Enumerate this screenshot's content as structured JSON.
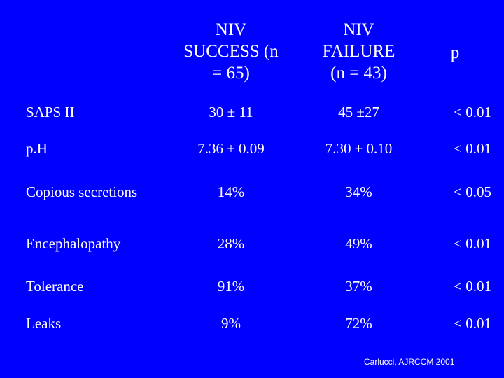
{
  "header": {
    "col1": "NIV\nSUCCESS  (n\n= 65)",
    "col2": "NIV\nFAILURE\n(n = 43)",
    "col3": "p"
  },
  "rows": [
    {
      "label": "SAPS II",
      "success": "30 ± 11",
      "failure": "45 ±27",
      "p": "< 0.01"
    },
    {
      "label": "p.H",
      "success": "7.36 ± 0.09",
      "failure": "7.30 ± 0.10",
      "p": "< 0.01"
    },
    {
      "label": "Copious secretions",
      "success": "14%",
      "failure": "34%",
      "p": "< 0.05"
    },
    {
      "label": "Encephalopathy",
      "success": "28%",
      "failure": "49%",
      "p": "< 0.01"
    },
    {
      "label": "Tolerance",
      "success": "91%",
      "failure": "37%",
      "p": "< 0.01"
    },
    {
      "label": "Leaks",
      "success": "9%",
      "failure": "72%",
      "p": "< 0.01"
    }
  ],
  "source": "Carlucci, AJRCCM 2001",
  "colors": {
    "background": "#0000ff",
    "text": "#ffffff"
  }
}
